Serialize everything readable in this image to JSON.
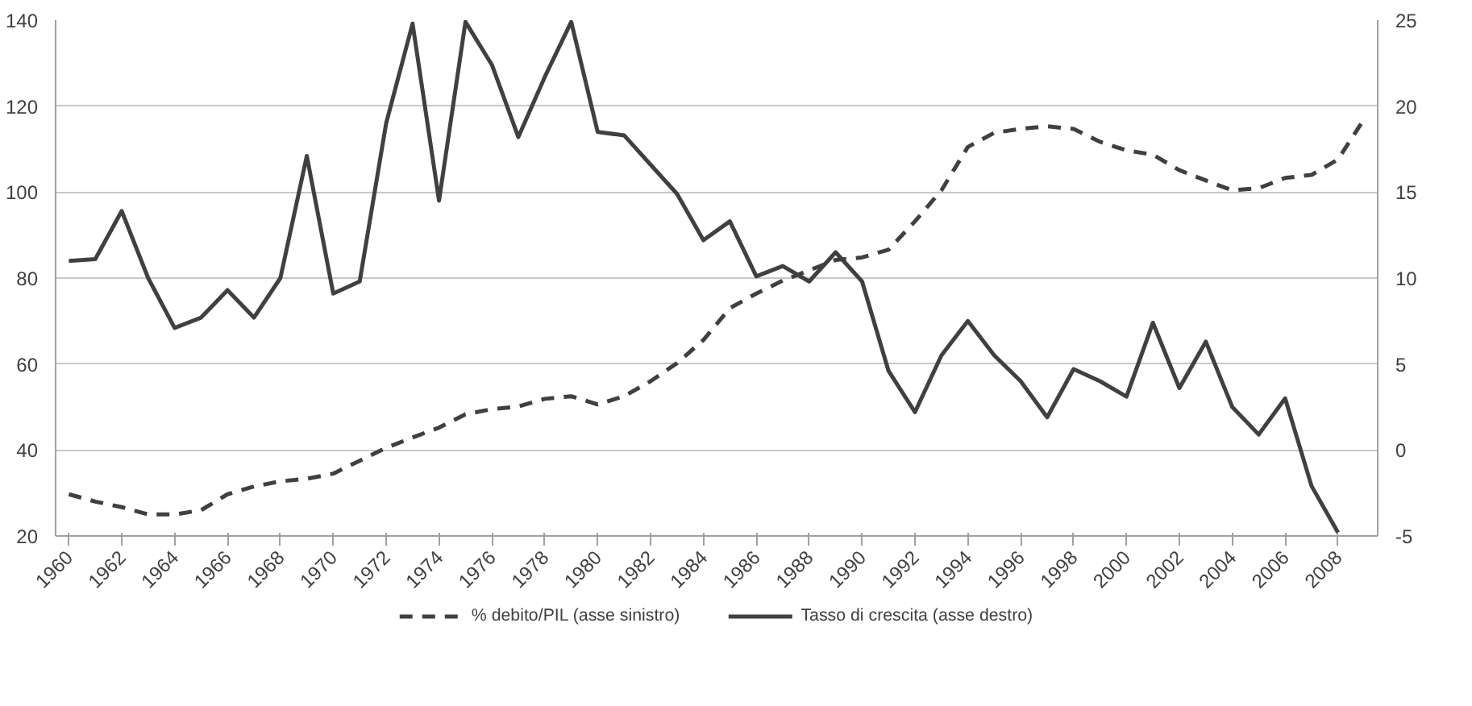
{
  "chart_data": {
    "type": "line",
    "x": [
      1960,
      1961,
      1962,
      1963,
      1964,
      1965,
      1966,
      1967,
      1968,
      1969,
      1970,
      1971,
      1972,
      1973,
      1974,
      1975,
      1976,
      1977,
      1978,
      1979,
      1980,
      1981,
      1982,
      1983,
      1984,
      1985,
      1986,
      1987,
      1988,
      1989,
      1990,
      1991,
      1992,
      1993,
      1994,
      1995,
      1996,
      1997,
      1998,
      1999,
      2000,
      2001,
      2002,
      2003,
      2004,
      2005,
      2006,
      2007,
      2008,
      2009
    ],
    "series": [
      {
        "name": "% debito/PIL (asse sinistro)",
        "color": "#404040",
        "line_style": "dashed",
        "values": [
          29.7,
          28,
          26.7,
          25,
          25,
          26,
          29.7,
          31.5,
          32.7,
          33.3,
          34.5,
          37.5,
          40.5,
          42.9,
          45.2,
          48.3,
          49.5,
          50.1,
          51.9,
          52.5,
          50.6,
          52.5,
          56,
          60.2,
          65.6,
          73,
          76.4,
          79.4,
          81.8,
          84.2,
          84.8,
          86.6,
          93.2,
          100.4,
          110.5,
          113.8,
          114.7,
          115.3,
          114.7,
          111.7,
          109.7,
          108.7,
          105.1,
          102.7,
          100.4,
          100.9,
          103.3,
          104,
          107.6,
          117.1
        ]
      },
      {
        "name": "Tasso di crescita (asse destro)",
        "color": "#404040",
        "line_style": "solid",
        "axis": "y2",
        "values": [
          11,
          11.1,
          13.9,
          10,
          7.1,
          7.7,
          9.3,
          7.7,
          10,
          17.1,
          9.1,
          9.8,
          19,
          24.8,
          14.5,
          24.9,
          22.4,
          18.2,
          21.7,
          24.9,
          18.5,
          18.3,
          16.6,
          14.9,
          12.2,
          13.3,
          10.1,
          10.7,
          9.8,
          11.5,
          9.8,
          4.6,
          2.2,
          5.5,
          7.5,
          5.5,
          4,
          1.9,
          4.7,
          4,
          3.1,
          7.4,
          3.6,
          6.3,
          2.5,
          0.9,
          3,
          -2.1,
          -4.8,
          null
        ]
      }
    ],
    "xlim": [
      1959.5,
      2009.5
    ],
    "xticks": [
      1960,
      1962,
      1964,
      1966,
      1968,
      1970,
      1972,
      1974,
      1976,
      1978,
      1980,
      1982,
      1984,
      1986,
      1988,
      1990,
      1992,
      1994,
      1996,
      1998,
      2000,
      2002,
      2004,
      2006,
      2008
    ],
    "ylim": [
      20,
      140
    ],
    "yticks": [
      20,
      40,
      60,
      80,
      100,
      120,
      140
    ],
    "y2lim": [
      -5,
      25
    ],
    "y2ticks": [
      -5,
      0,
      5,
      10,
      15,
      20,
      25
    ],
    "grid": "y",
    "legend": "bottom",
    "marker": "none"
  }
}
